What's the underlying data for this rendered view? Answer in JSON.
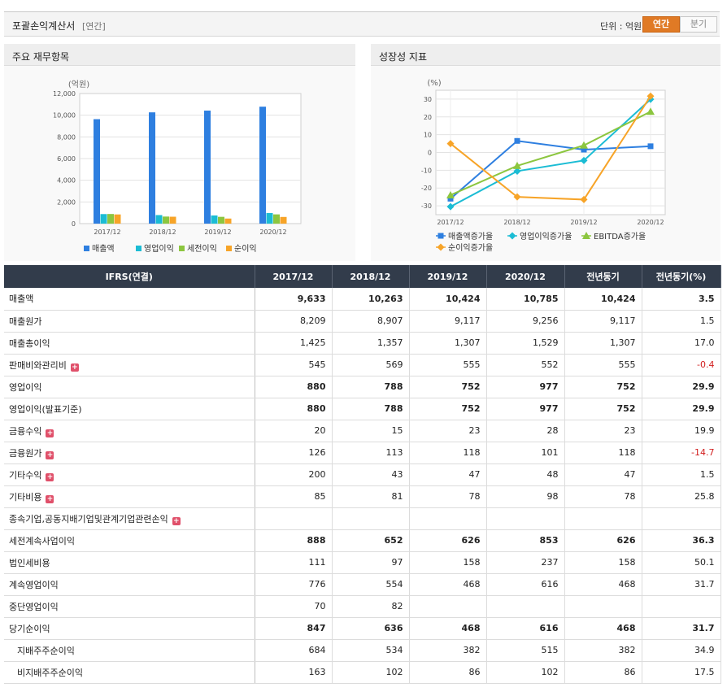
{
  "header": {
    "title": "포괄손익계산서",
    "period_tag": "[연간]",
    "unit_label": "단위 : 억원",
    "toggle_annual": "연간",
    "toggle_quarter": "분기"
  },
  "left_panel": {
    "title": "주요 재무항목",
    "y_unit": "(억원)",
    "chart_data": {
      "type": "bar",
      "categories": [
        "2017/12",
        "2018/12",
        "2019/12",
        "2020/12"
      ],
      "ylim": [
        0,
        12000
      ],
      "yticks": [
        "0",
        "2,000",
        "4,000",
        "6,000",
        "8,000",
        "10,000",
        "12,000"
      ],
      "series": [
        {
          "name": "매출액",
          "values": [
            9633,
            10263,
            10424,
            10785
          ],
          "color": "#2e7fe0"
        },
        {
          "name": "영업이익",
          "values": [
            880,
            788,
            752,
            977
          ],
          "color": "#1bbcd4"
        },
        {
          "name": "세전이익",
          "values": [
            888,
            652,
            626,
            853
          ],
          "color": "#8cc63f"
        },
        {
          "name": "순이익",
          "values": [
            847,
            636,
            468,
            616
          ],
          "color": "#f7a428"
        }
      ],
      "grid": true,
      "legend": "bottom"
    }
  },
  "right_panel": {
    "title": "성장성 지표",
    "y_unit": "(%)",
    "chart_data": {
      "type": "line",
      "categories": [
        "2017/12",
        "2018/12",
        "2019/12",
        "2020/12"
      ],
      "ylim": [
        -35,
        35
      ],
      "yticks": [
        "-30",
        "-20",
        "-10",
        "0",
        "10",
        "20",
        "30"
      ],
      "series": [
        {
          "name": "매출액증가율",
          "values": [
            -26,
            6.5,
            1.6,
            3.5
          ],
          "color": "#2e7fe0",
          "marker": "square"
        },
        {
          "name": "영업이익증가율",
          "values": [
            -30.5,
            -10.5,
            -4.5,
            29.9
          ],
          "color": "#1bbcd4",
          "marker": "diamond"
        },
        {
          "name": "EBITDA증가율",
          "values": [
            -24,
            -7.5,
            4,
            23
          ],
          "color": "#8cc63f",
          "marker": "triangle"
        },
        {
          "name": "순이익증가율",
          "values": [
            5,
            -25,
            -26.5,
            31.7
          ],
          "color": "#f7a428",
          "marker": "diamond"
        }
      ],
      "grid": true,
      "legend": "bottom"
    }
  },
  "table": {
    "columns": [
      "IFRS(연결)",
      "2017/12",
      "2018/12",
      "2019/12",
      "2020/12",
      "전년동기",
      "전년동기(%)"
    ],
    "rows": [
      {
        "label": "매출액",
        "values": [
          "9,633",
          "10,263",
          "10,424",
          "10,785",
          "10,424",
          "3.5"
        ],
        "bold": true
      },
      {
        "label": "매출원가",
        "values": [
          "8,209",
          "8,907",
          "9,117",
          "9,256",
          "9,117",
          "1.5"
        ]
      },
      {
        "label": "매출총이익",
        "values": [
          "1,425",
          "1,357",
          "1,307",
          "1,529",
          "1,307",
          "17.0"
        ]
      },
      {
        "label": "판매비와관리비",
        "values": [
          "545",
          "569",
          "555",
          "552",
          "555",
          "-0.4"
        ],
        "expand": true,
        "neg": true
      },
      {
        "label": "영업이익",
        "values": [
          "880",
          "788",
          "752",
          "977",
          "752",
          "29.9"
        ],
        "bold": true
      },
      {
        "label": "영업이익(발표기준)",
        "values": [
          "880",
          "788",
          "752",
          "977",
          "752",
          "29.9"
        ],
        "bold": true
      },
      {
        "label": "금융수익",
        "values": [
          "20",
          "15",
          "23",
          "28",
          "23",
          "19.9"
        ],
        "expand": true
      },
      {
        "label": "금융원가",
        "values": [
          "126",
          "113",
          "118",
          "101",
          "118",
          "-14.7"
        ],
        "expand": true,
        "neg": true
      },
      {
        "label": "기타수익",
        "values": [
          "200",
          "43",
          "47",
          "48",
          "47",
          "1.5"
        ],
        "expand": true
      },
      {
        "label": "기타비용",
        "values": [
          "85",
          "81",
          "78",
          "98",
          "78",
          "25.8"
        ],
        "expand": true
      },
      {
        "label": "종속기업,공동지배기업및관계기업관련손익",
        "values": [
          "",
          "",
          "",
          "",
          "",
          ""
        ],
        "expand": true
      },
      {
        "label": "세전계속사업이익",
        "values": [
          "888",
          "652",
          "626",
          "853",
          "626",
          "36.3"
        ],
        "bold": true
      },
      {
        "label": "법인세비용",
        "values": [
          "111",
          "97",
          "158",
          "237",
          "158",
          "50.1"
        ]
      },
      {
        "label": "계속영업이익",
        "values": [
          "776",
          "554",
          "468",
          "616",
          "468",
          "31.7"
        ]
      },
      {
        "label": "중단영업이익",
        "values": [
          "70",
          "82",
          "",
          "",
          "",
          ""
        ]
      },
      {
        "label": "당기순이익",
        "values": [
          "847",
          "636",
          "468",
          "616",
          "468",
          "31.7"
        ],
        "bold": true
      },
      {
        "label": "지배주주순이익",
        "values": [
          "684",
          "534",
          "382",
          "515",
          "382",
          "34.9"
        ],
        "indent": true
      },
      {
        "label": "비지배주주순이익",
        "values": [
          "163",
          "102",
          "86",
          "102",
          "86",
          "17.5"
        ],
        "indent": true
      }
    ]
  }
}
